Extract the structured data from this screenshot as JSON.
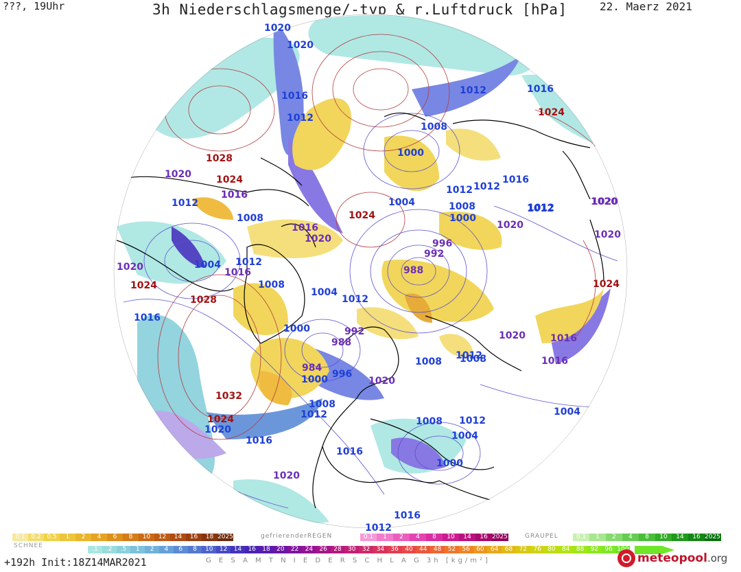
{
  "header": {
    "left": "???, 19Uhr",
    "title": "3h Niederschlagsmenge/-typ & r.Luftdruck [hPa]",
    "date": "22. Maerz 2021"
  },
  "isobars": [
    {
      "label": "1020",
      "cls": "iso-blue"
    },
    {
      "label": "1020",
      "cls": "iso-blue"
    },
    {
      "label": "1016",
      "cls": "iso-blue"
    },
    {
      "label": "1012",
      "cls": "iso-blue"
    },
    {
      "label": "1028",
      "cls": "iso-red"
    },
    {
      "label": "1020",
      "cls": "iso-purple"
    },
    {
      "label": "1024",
      "cls": "iso-red"
    },
    {
      "label": "1016",
      "cls": "iso-purple"
    },
    {
      "label": "1012",
      "cls": "iso-blue"
    },
    {
      "label": "1008",
      "cls": "iso-blue"
    },
    {
      "label": "1016",
      "cls": "iso-purple"
    },
    {
      "label": "1020",
      "cls": "iso-purple"
    },
    {
      "label": "1020",
      "cls": "iso-purple"
    },
    {
      "label": "1004",
      "cls": "iso-blue"
    },
    {
      "label": "1012",
      "cls": "iso-blue"
    },
    {
      "label": "1016",
      "cls": "iso-purple"
    },
    {
      "label": "1024",
      "cls": "iso-red"
    },
    {
      "label": "1028",
      "cls": "iso-red"
    },
    {
      "label": "1008",
      "cls": "iso-blue"
    },
    {
      "label": "1004",
      "cls": "iso-blue"
    },
    {
      "label": "1012",
      "cls": "iso-blue"
    },
    {
      "label": "1016",
      "cls": "iso-blue"
    },
    {
      "label": "1000",
      "cls": "iso-blue"
    },
    {
      "label": "992",
      "cls": "iso-purple"
    },
    {
      "label": "988",
      "cls": "iso-purple"
    },
    {
      "label": "984",
      "cls": "iso-purple"
    },
    {
      "label": "1000",
      "cls": "iso-blue"
    },
    {
      "label": "996",
      "cls": "iso-blue"
    },
    {
      "label": "1032",
      "cls": "iso-red"
    },
    {
      "label": "1024",
      "cls": "iso-red"
    },
    {
      "label": "1020",
      "cls": "iso-blue"
    },
    {
      "label": "1016",
      "cls": "iso-blue"
    },
    {
      "label": "1008",
      "cls": "iso-blue"
    },
    {
      "label": "1012",
      "cls": "iso-blue"
    },
    {
      "label": "1016",
      "cls": "iso-blue"
    },
    {
      "label": "1020",
      "cls": "iso-purple"
    },
    {
      "label": "1020",
      "cls": "iso-purple"
    },
    {
      "label": "1024",
      "cls": "iso-red"
    },
    {
      "label": "1000",
      "cls": "iso-blue"
    },
    {
      "label": "1004",
      "cls": "iso-blue"
    },
    {
      "label": "1008",
      "cls": "iso-blue"
    },
    {
      "label": "1000",
      "cls": "iso-blue"
    },
    {
      "label": "1012",
      "cls": "iso-blue"
    },
    {
      "label": "1012",
      "cls": "iso-blue"
    },
    {
      "label": "1016",
      "cls": "iso-blue"
    },
    {
      "label": "996",
      "cls": "iso-purple"
    },
    {
      "label": "992",
      "cls": "iso-purple"
    },
    {
      "label": "988",
      "cls": "iso-purple"
    },
    {
      "label": "1012",
      "cls": "iso-blue"
    },
    {
      "label": "1020",
      "cls": "iso-purple"
    },
    {
      "label": "1008",
      "cls": "iso-blue"
    },
    {
      "label": "1012",
      "cls": "iso-blue"
    },
    {
      "label": "1016",
      "cls": "iso-blue"
    },
    {
      "label": "1020",
      "cls": "iso-purple"
    },
    {
      "label": "1008",
      "cls": "iso-blue"
    },
    {
      "label": "1016",
      "cls": "iso-purple"
    },
    {
      "label": "1016",
      "cls": "iso-purple"
    },
    {
      "label": "1008",
      "cls": "iso-blue"
    },
    {
      "label": "1012",
      "cls": "iso-blue"
    },
    {
      "label": "1004",
      "cls": "iso-blue"
    },
    {
      "label": "1000",
      "cls": "iso-blue"
    },
    {
      "label": "1012",
      "cls": "iso-blue"
    },
    {
      "label": "1008",
      "cls": "iso-blue"
    },
    {
      "label": "1012",
      "cls": "iso-blue"
    },
    {
      "label": "1004",
      "cls": "iso-blue"
    },
    {
      "label": "1020",
      "cls": "iso-purple"
    },
    {
      "label": "1020",
      "cls": "iso-purple"
    },
    {
      "label": "1024",
      "cls": "iso-red"
    },
    {
      "label": "1016",
      "cls": "iso-blue"
    },
    {
      "label": "1012",
      "cls": "iso-blue"
    },
    {
      "label": "1024",
      "cls": "iso-red"
    },
    {
      "label": "1020",
      "cls": "iso-purple"
    },
    {
      "label": "1016",
      "cls": "iso-purple"
    }
  ],
  "legend": {
    "snow_values": [
      "0.1",
      "0.2",
      "0.5",
      "1",
      "2",
      "4",
      "6",
      "8",
      "10",
      "12",
      "14",
      "16",
      "18",
      "2025+"
    ],
    "snow_label": "SCHNEE",
    "freezing_label": "gefrierenderREGEN",
    "freezing_values": [
      "0.1",
      "1",
      "2",
      "4",
      "8",
      "10",
      "14",
      "16",
      "2025+"
    ],
    "graupel_label": "GRAUPEL",
    "graupel_values": [
      "0.1",
      "1",
      "2",
      "4",
      "8",
      "10",
      "14",
      "16",
      "2025+"
    ],
    "total_values": [
      ".1",
      ".2",
      ".5",
      "1",
      "2",
      "4",
      "6",
      "8",
      "10",
      "12",
      "14",
      "16",
      "18",
      "20",
      "22",
      "24",
      "26",
      "28",
      "30",
      "32",
      "34",
      "36",
      "40",
      "44",
      "48",
      "52",
      "56",
      "60",
      "64",
      "68",
      "72",
      "76",
      "80",
      "84",
      "88",
      "92",
      "96",
      "100"
    ],
    "total_label": "G E S A M T N I E D E R S C H L A G   3h   [kg/m²]"
  },
  "footer": {
    "left": "+192h Init:18Z14MAR2021",
    "logo_main": "meteopool",
    "logo_tld": ".org"
  },
  "colors": {
    "snow": [
      "#f5e8a0",
      "#f3dc6e",
      "#f0d24a",
      "#eec53a",
      "#eab52d",
      "#e5a324",
      "#dd8f1e",
      "#d47c1a",
      "#c96a17",
      "#bd5b14",
      "#ae4c12",
      "#9b3f11",
      "#86340f",
      "#6e2a0c"
    ],
    "freezing": [
      "#f59ad8",
      "#f07ccb",
      "#ea5fbe",
      "#e244b0",
      "#d82ea1",
      "#cb1c90",
      "#bb117f",
      "#a80a6e",
      "#93055d"
    ],
    "graupel": [
      "#c8f0b0",
      "#a8e690",
      "#86da70",
      "#66cc52",
      "#4abd3a",
      "#33ac28",
      "#219a1b",
      "#138713",
      "#0a730f"
    ],
    "total": [
      "#a8e6e2",
      "#98dcde",
      "#88d0dc",
      "#7cc2dc",
      "#70b2dc",
      "#66a0da",
      "#5c8cd6",
      "#5478d2",
      "#4c62cc",
      "#464ac4",
      "#4232bc",
      "#4a22b4",
      "#5a1aac",
      "#6c16a4",
      "#80149c",
      "#921494",
      "#a4168a",
      "#b41a80",
      "#c22076",
      "#ce286a",
      "#d8325e",
      "#e03e52",
      "#e64a46",
      "#ea583c",
      "#ec6632",
      "#ee762a",
      "#ee8624",
      "#ec961e",
      "#e8a81a",
      "#e2ba16",
      "#dac814",
      "#cfd412",
      "#c2dc12",
      "#b2e214",
      "#a0e618",
      "#8ee81c",
      "#7ee822",
      "#70e62a"
    ]
  }
}
